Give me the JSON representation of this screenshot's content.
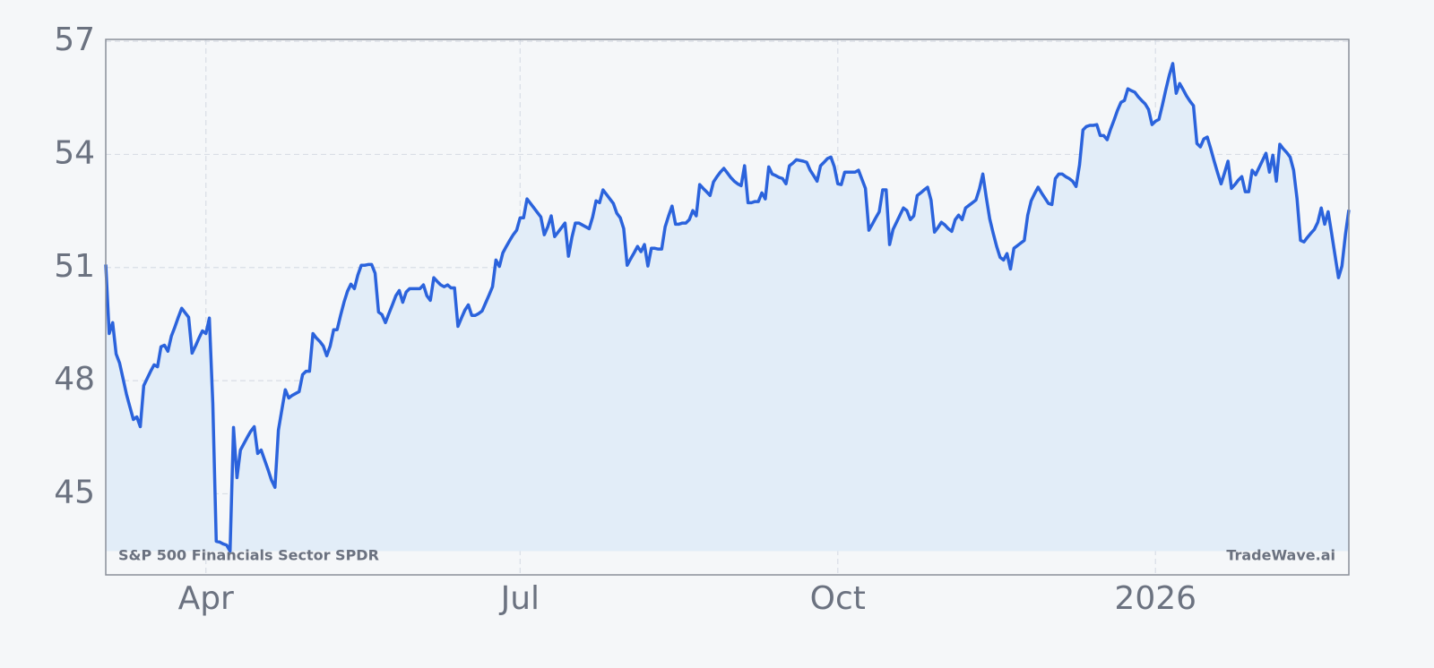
{
  "chart_data": {
    "type": "line",
    "annotations": [
      "S&P 500 Financials Sector SPDR",
      "TradeWave.ai"
    ],
    "categories": [
      null,
      null,
      null,
      null,
      null,
      null,
      null,
      null,
      null,
      null,
      null,
      null,
      null,
      null,
      null,
      null,
      null,
      null,
      null,
      null,
      null,
      null,
      null,
      null,
      null,
      null,
      null,
      null,
      null,
      "Apr",
      null,
      null,
      null,
      null,
      null,
      null,
      null,
      null,
      null,
      null,
      null,
      null,
      null,
      null,
      null,
      null,
      null,
      null,
      null,
      null,
      null,
      null,
      null,
      null,
      null,
      null,
      null,
      null,
      null,
      null,
      null,
      null,
      null,
      null,
      null,
      null,
      null,
      null,
      null,
      null,
      null,
      null,
      null,
      null,
      null,
      null,
      null,
      null,
      null,
      null,
      null,
      null,
      null,
      null,
      null,
      null,
      null,
      null,
      null,
      null,
      null,
      null,
      null,
      null,
      null,
      null,
      null,
      null,
      null,
      null,
      null,
      null,
      null,
      null,
      null,
      null,
      null,
      null,
      null,
      null,
      null,
      null,
      null,
      null,
      null,
      null,
      null,
      null,
      null,
      null,
      "Jul",
      null,
      null,
      null,
      null,
      null,
      null,
      null,
      null,
      null,
      null,
      null,
      null,
      null,
      null,
      null,
      null,
      null,
      null,
      null,
      null,
      null,
      null,
      null,
      null,
      null,
      null,
      null,
      null,
      null,
      null,
      null,
      null,
      null,
      null,
      null,
      null,
      null,
      null,
      null,
      null,
      null,
      null,
      null,
      null,
      null,
      null,
      null,
      null,
      null,
      null,
      null,
      null,
      null,
      null,
      null,
      null,
      null,
      null,
      null,
      null,
      null,
      null,
      null,
      null,
      null,
      null,
      null,
      null,
      null,
      null,
      null,
      null,
      null,
      null,
      null,
      null,
      null,
      null,
      null,
      null,
      null,
      null,
      null,
      null,
      null,
      null,
      null,
      null,
      null,
      null,
      null,
      "Oct",
      null,
      null,
      null,
      null,
      null,
      null,
      null,
      null,
      null,
      null,
      null,
      null,
      null,
      null,
      null,
      null,
      null,
      null,
      null,
      null,
      null,
      null,
      null,
      null,
      null,
      null,
      null,
      null,
      null,
      null,
      null,
      null,
      null,
      null,
      null,
      null,
      null,
      null,
      null,
      null,
      null,
      null,
      null,
      null,
      null,
      null,
      null,
      null,
      null,
      null,
      null,
      null,
      null,
      null,
      null,
      null,
      null,
      null,
      null,
      null,
      null,
      null,
      null,
      null,
      null,
      null,
      null,
      null,
      null,
      null,
      null,
      null,
      null,
      null,
      null,
      null,
      null,
      null,
      null,
      null,
      null,
      null,
      null,
      null,
      null,
      null,
      null,
      null,
      null,
      null,
      null,
      "2026",
      null,
      null,
      null,
      null,
      null,
      null,
      null,
      null,
      null,
      null,
      null,
      null,
      null,
      null,
      null,
      null,
      null,
      null,
      null,
      null,
      null,
      null,
      null,
      null,
      null,
      null,
      null,
      null,
      null,
      null,
      null,
      null,
      null,
      null,
      null,
      null,
      null,
      null,
      null,
      null,
      null,
      null,
      null,
      null,
      null,
      null,
      null,
      null,
      null,
      null,
      null,
      null,
      null,
      null,
      null,
      null
    ],
    "values": [
      51.08,
      49.25,
      49.54,
      48.71,
      48.47,
      48.06,
      47.64,
      47.3,
      46.97,
      47.04,
      46.78,
      47.87,
      48.06,
      48.25,
      48.42,
      48.37,
      48.9,
      48.94,
      48.78,
      49.18,
      49.42,
      49.68,
      49.92,
      49.8,
      49.68,
      48.73,
      48.92,
      49.13,
      49.32,
      49.25,
      49.66,
      47.4,
      43.74,
      43.72,
      43.67,
      43.64,
      43.48,
      46.76,
      45.43,
      46.16,
      46.33,
      46.5,
      46.66,
      46.78,
      46.07,
      46.16,
      45.9,
      45.64,
      45.36,
      45.17,
      46.69,
      47.23,
      47.76,
      47.54,
      47.61,
      47.66,
      47.71,
      48.16,
      48.25,
      48.25,
      49.25,
      49.13,
      49.04,
      48.92,
      48.66,
      48.92,
      49.35,
      49.35,
      49.73,
      50.08,
      50.37,
      50.56,
      50.44,
      50.8,
      51.06,
      51.06,
      51.08,
      51.08,
      50.85,
      49.82,
      49.75,
      49.54,
      49.78,
      50.01,
      50.25,
      50.39,
      50.08,
      50.35,
      50.44,
      50.44,
      50.44,
      50.44,
      50.54,
      50.25,
      50.13,
      50.73,
      50.63,
      50.54,
      50.49,
      50.54,
      50.46,
      50.46,
      49.44,
      49.66,
      49.87,
      50.01,
      49.73,
      49.73,
      49.78,
      49.85,
      50.06,
      50.27,
      50.49,
      51.2,
      51.03,
      51.39,
      51.56,
      51.72,
      51.87,
      51.99,
      52.32,
      52.32,
      52.82,
      52.7,
      52.58,
      52.46,
      52.34,
      51.87,
      52.08,
      52.37,
      51.82,
      51.94,
      52.06,
      52.18,
      51.3,
      51.8,
      52.18,
      52.18,
      52.13,
      52.08,
      52.03,
      52.34,
      52.77,
      52.72,
      53.06,
      52.94,
      52.82,
      52.7,
      52.44,
      52.32,
      52.03,
      51.06,
      51.23,
      51.39,
      51.56,
      51.42,
      51.61,
      51.04,
      51.51,
      51.51,
      51.49,
      51.49,
      52.08,
      52.37,
      52.63,
      52.15,
      52.15,
      52.18,
      52.18,
      52.27,
      52.51,
      52.37,
      53.2,
      53.1,
      53.01,
      52.91,
      53.27,
      53.41,
      53.53,
      53.63,
      53.51,
      53.39,
      53.29,
      53.22,
      53.17,
      53.7,
      52.72,
      52.72,
      52.75,
      52.75,
      52.98,
      52.82,
      53.67,
      53.48,
      53.44,
      53.39,
      53.36,
      53.22,
      53.7,
      53.77,
      53.86,
      53.84,
      53.82,
      53.79,
      53.58,
      53.44,
      53.29,
      53.7,
      53.79,
      53.89,
      53.93,
      53.67,
      53.22,
      53.2,
      53.53,
      53.53,
      53.53,
      53.53,
      53.58,
      53.34,
      53.1,
      51.99,
      52.15,
      52.32,
      52.48,
      53.06,
      53.06,
      51.61,
      52.01,
      52.2,
      52.39,
      52.58,
      52.51,
      52.27,
      52.37,
      52.91,
      52.98,
      53.06,
      53.13,
      52.79,
      51.94,
      52.06,
      52.2,
      52.13,
      52.03,
      51.96,
      52.27,
      52.39,
      52.27,
      52.58,
      52.65,
      52.72,
      52.79,
      53.08,
      53.48,
      52.86,
      52.29,
      51.91,
      51.56,
      51.27,
      51.2,
      51.37,
      50.96,
      51.51,
      51.58,
      51.65,
      51.72,
      52.39,
      52.77,
      52.96,
      53.13,
      52.98,
      52.84,
      52.7,
      52.67,
      53.36,
      53.48,
      53.48,
      53.41,
      53.36,
      53.29,
      53.15,
      53.72,
      54.65,
      54.74,
      54.77,
      54.77,
      54.79,
      54.5,
      54.5,
      54.39,
      54.67,
      54.91,
      55.17,
      55.38,
      55.43,
      55.74,
      55.69,
      55.65,
      55.53,
      55.43,
      55.34,
      55.19,
      54.79,
      54.88,
      54.93,
      55.31,
      55.72,
      56.1,
      56.41,
      55.62,
      55.88,
      55.72,
      55.55,
      55.41,
      55.29,
      54.29,
      54.2,
      54.41,
      54.46,
      54.15,
      53.82,
      53.51,
      53.22,
      53.51,
      53.82,
      53.1,
      53.2,
      53.32,
      53.41,
      53.01,
      53.01,
      53.58,
      53.46,
      53.65,
      53.84,
      54.03,
      53.53,
      53.98,
      53.29,
      54.27,
      54.15,
      54.05,
      53.93,
      53.58,
      52.82,
      51.72,
      51.68,
      51.8,
      51.91,
      52.01,
      52.2,
      52.58,
      52.15,
      52.48,
      51.91,
      51.32,
      50.73,
      51.04,
      51.87,
      52.53
    ],
    "color": "#2b63dc",
    "fill": "#e2edf8",
    "ylim": [
      42.85,
      57.05
    ],
    "yticks": [
      45,
      48,
      51,
      54,
      57
    ],
    "grid": true
  }
}
